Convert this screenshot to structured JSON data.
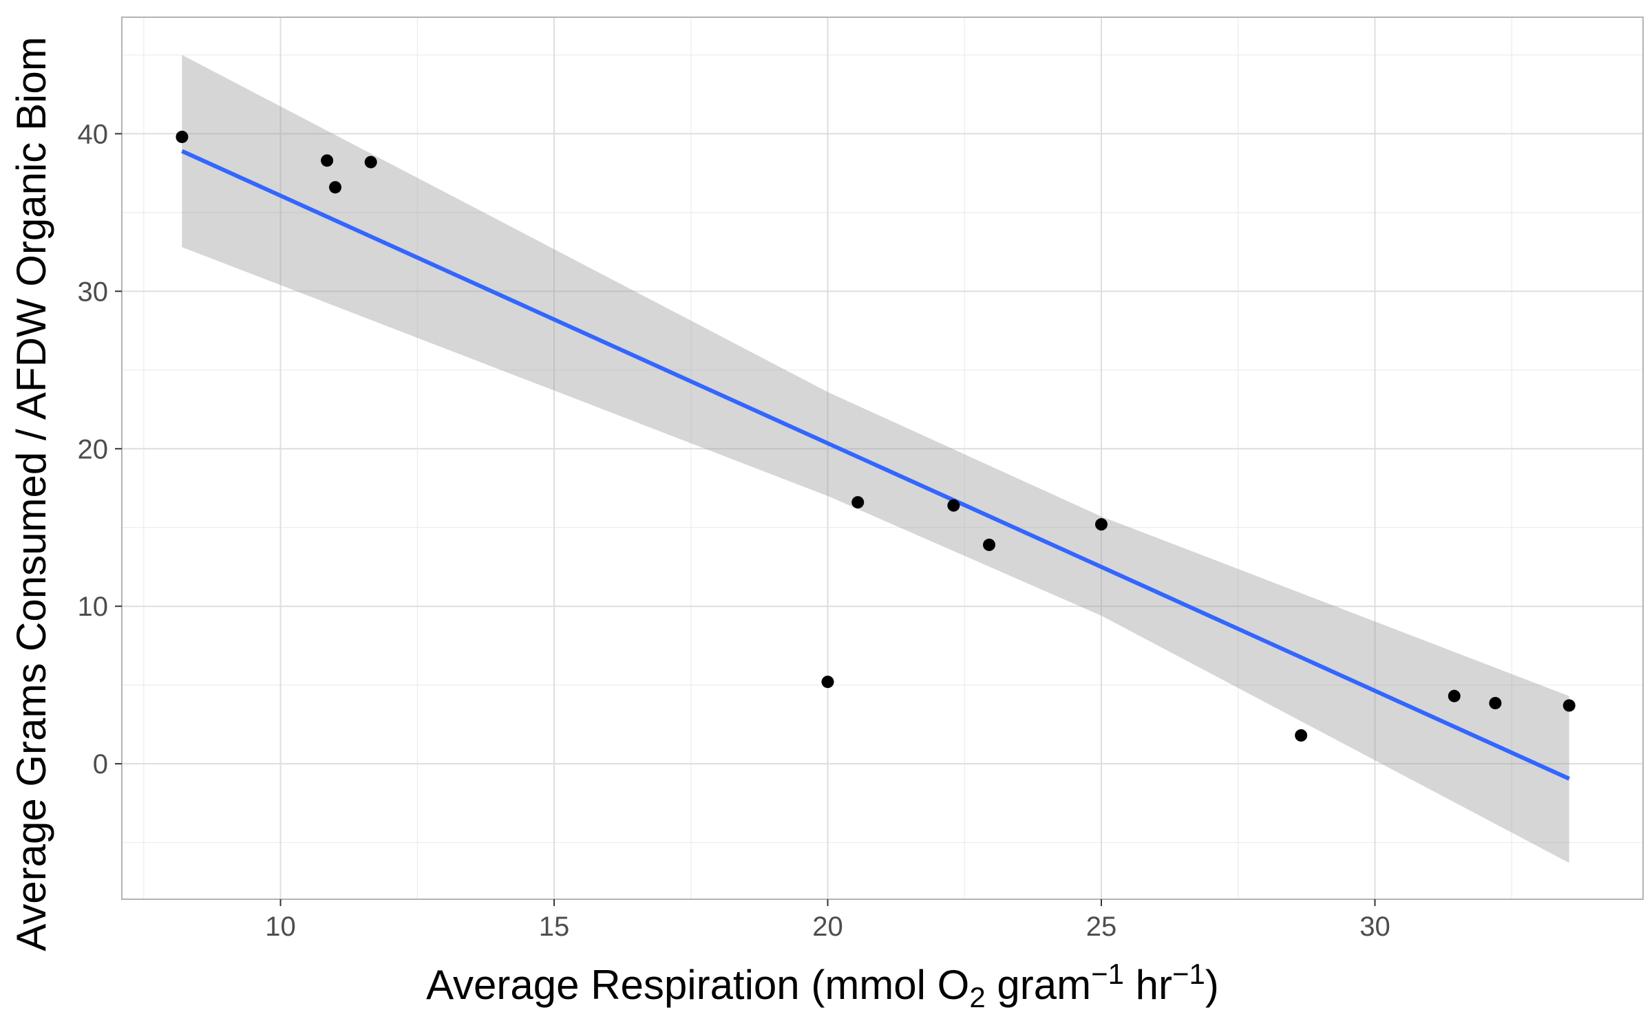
{
  "chart_data": {
    "type": "scatter",
    "title": "",
    "xlabel": "Average Respiration (mmol O₂ gram⁻¹ hr⁻¹)",
    "xlabel_parts": {
      "a": "Average Respiration (mmol O",
      "b": "2",
      "c": " gram",
      "d": "−1",
      "e": " hr",
      "f": "−1",
      "g": ")"
    },
    "ylabel": "Average Grams Consumed / AFDW Organic Biom",
    "xlim": [
      7.1,
      34.9
    ],
    "ylim": [
      -8.6,
      47.4
    ],
    "x_ticks": [
      10,
      15,
      20,
      25,
      30
    ],
    "x_tick_labels": [
      "10",
      "15",
      "20",
      "25",
      "30"
    ],
    "x_minor": [
      7.5,
      12.5,
      17.5,
      22.5,
      27.5,
      32.5
    ],
    "y_ticks": [
      0,
      10,
      20,
      30,
      40
    ],
    "y_tick_labels": [
      "0",
      "10",
      "20",
      "30",
      "40"
    ],
    "y_minor": [
      -5,
      5,
      15,
      25,
      35,
      45
    ],
    "grid": true,
    "legend": "none",
    "series": [
      {
        "type": "points",
        "color": "#000000",
        "x": [
          8.2,
          10.85,
          11.0,
          11.65,
          20.0,
          20.55,
          22.3,
          22.95,
          25.0,
          28.65,
          31.45,
          32.2,
          33.55
        ],
        "y": [
          39.8,
          38.3,
          36.6,
          38.2,
          5.2,
          16.6,
          16.4,
          13.9,
          15.2,
          1.8,
          4.3,
          3.85,
          3.7
        ]
      }
    ],
    "fit": {
      "color": "#3366FF",
      "band_color": "#999999",
      "x": [
        8.2,
        20.0,
        25.0,
        33.55
      ],
      "y": [
        38.9,
        20.35,
        12.5,
        -0.95
      ],
      "lower": [
        32.8,
        17.0,
        9.4,
        -6.3
      ],
      "upper": [
        45.0,
        23.6,
        15.7,
        4.3
      ]
    }
  }
}
